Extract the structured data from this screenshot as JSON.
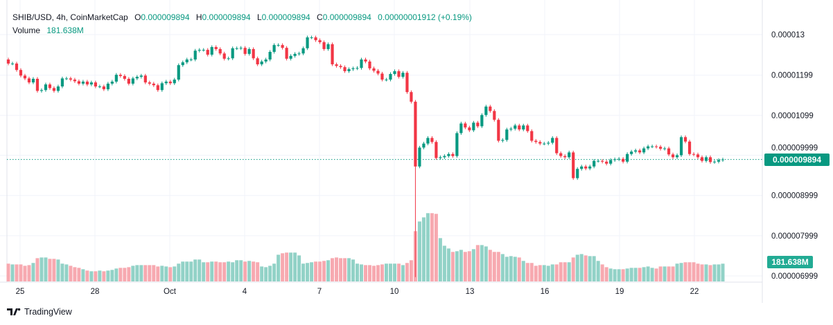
{
  "legend": {
    "symbol": "SHIB/USD, 4h, CoinMarketCap",
    "open_key": "O",
    "open": "0.000009894",
    "high_key": "H",
    "high": "0.000009894",
    "low_key": "L",
    "low": "0.000009894",
    "close_key": "C",
    "close": "0.000009894",
    "change": "0.00000001912 (+0.19%)",
    "volume_label": "Volume",
    "volume": "181.638M"
  },
  "price_tag": "0.000009894",
  "volume_tag": "181.638M",
  "brand": "TradingView",
  "colors": {
    "up": "#089981",
    "down": "#f23645",
    "vol_up": "#92d2c7",
    "vol_down": "#f7a9b0",
    "grid": "#f0f3fa"
  },
  "chart_data": {
    "type": "candlestick",
    "interval": "4h",
    "x_ticks": [
      "25",
      "28",
      "Oct",
      "4",
      "7",
      "10",
      "13",
      "16",
      "19",
      "22"
    ],
    "y_ticks": [
      "0.000013",
      "0.00001199",
      "0.00001099",
      "0.000009999",
      "0.000008999",
      "0.000007999",
      "0.000006999"
    ],
    "y_tick_values": [
      1.3e-05,
      1.199e-05,
      1.099e-05,
      9.999e-06,
      8.999e-06,
      7.999e-06,
      6.999e-06
    ],
    "ylim": [
      6.92e-06,
      1.33e-05
    ],
    "first_open": 1.238e-05,
    "closes": [
      1.228e-05,
      1.228e-05,
      1.212e-05,
      1.198e-05,
      1.191e-05,
      1.181e-05,
      1.19e-05,
      1.16e-05,
      1.162e-05,
      1.176e-05,
      1.167e-05,
      1.16e-05,
      1.171e-05,
      1.191e-05,
      1.191e-05,
      1.188e-05,
      1.184e-05,
      1.178e-05,
      1.183e-05,
      1.176e-05,
      1.181e-05,
      1.171e-05,
      1.171e-05,
      1.164e-05,
      1.178e-05,
      1.183e-05,
      1.2e-05,
      1.197e-05,
      1.19e-05,
      1.178e-05,
      1.191e-05,
      1.195e-05,
      1.198e-05,
      1.181e-05,
      1.178e-05,
      1.174e-05,
      1.162e-05,
      1.179e-05,
      1.183e-05,
      1.179e-05,
      1.188e-05,
      1.224e-05,
      1.231e-05,
      1.238e-05,
      1.238e-05,
      1.26e-05,
      1.262e-05,
      1.262e-05,
      1.25e-05,
      1.269e-05,
      1.264e-05,
      1.253e-05,
      1.24e-05,
      1.241e-05,
      1.266e-05,
      1.266e-05,
      1.267e-05,
      1.252e-05,
      1.264e-05,
      1.241e-05,
      1.226e-05,
      1.233e-05,
      1.238e-05,
      1.257e-05,
      1.274e-05,
      1.274e-05,
      1.267e-05,
      1.24e-05,
      1.247e-05,
      1.252e-05,
      1.253e-05,
      1.266e-05,
      1.293e-05,
      1.293e-05,
      1.286e-05,
      1.281e-05,
      1.264e-05,
      1.276e-05,
      1.226e-05,
      1.222e-05,
      1.219e-05,
      1.209e-05,
      1.214e-05,
      1.216e-05,
      1.217e-05,
      1.238e-05,
      1.233e-05,
      1.216e-05,
      1.21e-05,
      1.203e-05,
      1.188e-05,
      1.188e-05,
      1.202e-05,
      1.209e-05,
      1.195e-05,
      1.205e-05,
      1.157e-05,
      1.133e-05,
      9.72e-06,
      1.019e-05,
      1.029e-05,
      1.043e-05,
      1.033e-05,
      9.93e-06,
      9.95e-06,
      9.98e-06,
      1.003e-05,
      9.98e-06,
      1.055e-05,
      1.079e-05,
      1.069e-05,
      1.062e-05,
      1.081e-05,
      1.072e-05,
      1.1e-05,
      1.121e-05,
      1.11e-05,
      1.088e-05,
      1.036e-05,
      1.038e-05,
      1.064e-05,
      1.066e-05,
      1.074e-05,
      1.064e-05,
      1.074e-05,
      1.06e-05,
      1.036e-05,
      1.033e-05,
      1.029e-05,
      1.029e-05,
      1.031e-05,
      1.043e-05,
      1.005e-05,
      9.98e-06,
      9.95e-06,
      1.007e-05,
      9.43e-06,
      9.66e-06,
      9.72e-06,
      9.67e-06,
      9.72e-06,
      9.86e-06,
      9.86e-06,
      9.84e-06,
      9.79e-06,
      9.88e-06,
      9.9e-06,
      9.91e-06,
      9.84e-06,
      1.003e-05,
      1.009e-05,
      1.012e-05,
      1.007e-05,
      1.017e-05,
      1.022e-05,
      1.022e-05,
      1.021e-05,
      1.016e-05,
      1.017e-05,
      1.002e-05,
      9.95e-06,
      1e-05,
      1.045e-05,
      1.034e-05,
      1.003e-05,
      1.002e-05,
      9.95e-06,
      9.86e-06,
      9.95e-06,
      9.83e-06,
      9.84e-06,
      9.88e-06,
      9.894e-06
    ],
    "notable_lows": [
      {
        "index": 98,
        "low": 6.97e-06
      }
    ],
    "volume_unit": "M",
    "volumes": [
      182,
      174,
      174,
      174,
      160,
      167,
      189,
      238,
      245,
      245,
      231,
      231,
      224,
      182,
      174,
      160,
      146,
      139,
      125,
      111,
      104,
      104,
      111,
      104,
      111,
      118,
      132,
      139,
      139,
      146,
      160,
      167,
      167,
      167,
      167,
      167,
      153,
      160,
      153,
      146,
      153,
      182,
      203,
      203,
      203,
      224,
      224,
      196,
      196,
      203,
      203,
      196,
      196,
      203,
      196,
      217,
      217,
      203,
      210,
      203,
      196,
      153,
      146,
      160,
      182,
      273,
      288,
      295,
      295,
      295,
      266,
      182,
      189,
      196,
      203,
      203,
      210,
      217,
      238,
      245,
      238,
      238,
      238,
      224,
      182,
      174,
      167,
      167,
      160,
      167,
      174,
      182,
      182,
      182,
      182,
      167,
      189,
      217,
      514,
      613,
      655,
      698,
      698,
      691,
      443,
      365,
      337,
      302,
      309,
      323,
      302,
      309,
      330,
      372,
      372,
      358,
      323,
      302,
      302,
      280,
      252,
      259,
      252,
      245,
      210,
      189,
      189,
      160,
      167,
      167,
      160,
      174,
      174,
      196,
      196,
      196,
      245,
      273,
      280,
      266,
      259,
      259,
      210,
      174,
      146,
      132,
      125,
      125,
      125,
      132,
      139,
      139,
      139,
      146,
      153,
      139,
      132,
      153,
      153,
      153,
      153,
      182,
      189,
      196,
      196,
      196,
      182,
      174,
      174,
      167,
      174,
      174,
      181.638
    ],
    "last_price": 9.894e-06,
    "grid": true
  }
}
